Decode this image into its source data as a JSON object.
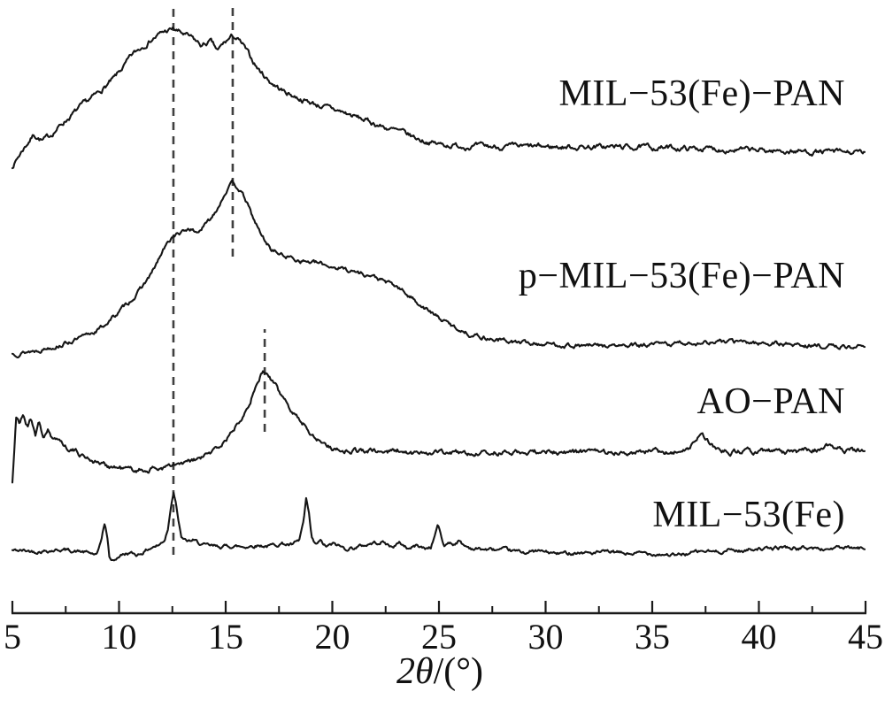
{
  "figure": {
    "background": "#ffffff",
    "curve_color": "#151515",
    "ref_line_color": "#3f3f3f",
    "axis_color": "#1a1a1a"
  },
  "chart_data": {
    "type": "line",
    "title": "",
    "xlabel": "2θ/(°)",
    "xlabel_parts": {
      "number": "2",
      "theta": "θ",
      "rest": "/(°)"
    },
    "xlim": [
      5,
      45
    ],
    "x_ticks": [
      5,
      10,
      15,
      20,
      25,
      30,
      35,
      40,
      45
    ],
    "x_tick_labels": [
      "5",
      "10",
      "15",
      "20",
      "25",
      "30",
      "35",
      "40",
      "45"
    ],
    "x_minor_tick_step": 2.5,
    "grid": false,
    "legend_position": "inline-right",
    "ref_lines": [
      {
        "two_theta": 12.55,
        "y_from": 172,
        "y_to": 789
      },
      {
        "two_theta": 15.33,
        "y_from": 509,
        "y_to": 791
      },
      {
        "two_theta": 16.83,
        "y_from": 311,
        "y_to": 427
      }
    ],
    "series": [
      {
        "name": "MIL−53(Fe)−PAN",
        "peaks_2theta": [
          12.5,
          15.3
        ],
        "noise": 4.2,
        "seed": 7,
        "points": [
          [
            5.0,
            611
          ],
          [
            5.46,
            629
          ],
          [
            6.0,
            647
          ],
          [
            6.41,
            640
          ],
          [
            6.74,
            645
          ],
          [
            7.32,
            659
          ],
          [
            8.15,
            677
          ],
          [
            8.98,
            693
          ],
          [
            9.81,
            711
          ],
          [
            10.64,
            737
          ],
          [
            11.47,
            754
          ],
          [
            12.1,
            763
          ],
          [
            12.55,
            766
          ],
          [
            12.97,
            761
          ],
          [
            13.46,
            755
          ],
          [
            13.88,
            747
          ],
          [
            14.29,
            752
          ],
          [
            14.63,
            741
          ],
          [
            14.88,
            749
          ],
          [
            15.12,
            754
          ],
          [
            15.33,
            758
          ],
          [
            15.54,
            755
          ],
          [
            15.83,
            747
          ],
          [
            16.16,
            734
          ],
          [
            16.53,
            721
          ],
          [
            17.07,
            707
          ],
          [
            17.7,
            696
          ],
          [
            18.53,
            687
          ],
          [
            19.36,
            680
          ],
          [
            20.39,
            673
          ],
          [
            21.43,
            664
          ],
          [
            22.47,
            655
          ],
          [
            23.3,
            649
          ],
          [
            24.13,
            641
          ],
          [
            24.96,
            636
          ],
          [
            26.0,
            634
          ],
          [
            27.66,
            633
          ],
          [
            29.3,
            633
          ],
          [
            31.4,
            633
          ],
          [
            33.5,
            633
          ],
          [
            35.5,
            632
          ],
          [
            37.6,
            631
          ],
          [
            39.7,
            629
          ],
          [
            41.8,
            628
          ],
          [
            43.8,
            627
          ],
          [
            45.0,
            626
          ]
        ]
      },
      {
        "name": "p−MIL−53(Fe)−PAN",
        "peaks_2theta": [
          12.5,
          15.3
        ],
        "noise": 3.6,
        "seed": 13,
        "points": [
          [
            5.0,
            399
          ],
          [
            6.08,
            403
          ],
          [
            7.32,
            410
          ],
          [
            8.36,
            418
          ],
          [
            9.19,
            429
          ],
          [
            10.02,
            447
          ],
          [
            10.85,
            467
          ],
          [
            11.56,
            491
          ],
          [
            12.1,
            517
          ],
          [
            12.55,
            533
          ],
          [
            12.97,
            536
          ],
          [
            13.3,
            541
          ],
          [
            13.63,
            536
          ],
          [
            13.96,
            543
          ],
          [
            14.29,
            551
          ],
          [
            14.67,
            567
          ],
          [
            15.0,
            583
          ],
          [
            15.33,
            592
          ],
          [
            15.62,
            586
          ],
          [
            15.95,
            572
          ],
          [
            16.29,
            552
          ],
          [
            16.7,
            532
          ],
          [
            17.12,
            518
          ],
          [
            17.61,
            511
          ],
          [
            18.32,
            506
          ],
          [
            19.36,
            501
          ],
          [
            20.6,
            495
          ],
          [
            21.85,
            487
          ],
          [
            23.0,
            475
          ],
          [
            23.92,
            459
          ],
          [
            24.83,
            442
          ],
          [
            25.66,
            430
          ],
          [
            26.5,
            421
          ],
          [
            27.45,
            416
          ],
          [
            28.7,
            412
          ],
          [
            30.15,
            410
          ],
          [
            32.2,
            408
          ],
          [
            34.3,
            408
          ],
          [
            36.37,
            411
          ],
          [
            38.45,
            413
          ],
          [
            40.5,
            411
          ],
          [
            42.6,
            408
          ],
          [
            45.0,
            407
          ]
        ]
      },
      {
        "name": "AO−PAN",
        "peaks_2theta": [
          16.8
        ],
        "noise": 4.2,
        "seed": 21,
        "points": [
          [
            5.0,
            254
          ],
          [
            5.08,
            287
          ],
          [
            5.17,
            329
          ],
          [
            5.33,
            319
          ],
          [
            5.5,
            331
          ],
          [
            5.7,
            317
          ],
          [
            5.87,
            327
          ],
          [
            6.08,
            309
          ],
          [
            6.24,
            321
          ],
          [
            6.45,
            305
          ],
          [
            6.66,
            313
          ],
          [
            6.91,
            299
          ],
          [
            7.16,
            305
          ],
          [
            7.45,
            295
          ],
          [
            7.82,
            291
          ],
          [
            8.24,
            285
          ],
          [
            8.78,
            279
          ],
          [
            9.4,
            273
          ],
          [
            10.02,
            270
          ],
          [
            10.64,
            268
          ],
          [
            11.27,
            268
          ],
          [
            11.89,
            270
          ],
          [
            12.5,
            272
          ],
          [
            13.13,
            275
          ],
          [
            13.75,
            280
          ],
          [
            14.29,
            287
          ],
          [
            14.79,
            296
          ],
          [
            15.29,
            310
          ],
          [
            15.7,
            327
          ],
          [
            16.08,
            344
          ],
          [
            16.37,
            359
          ],
          [
            16.58,
            371
          ],
          [
            16.74,
            380
          ],
          [
            16.91,
            376
          ],
          [
            17.07,
            372
          ],
          [
            17.32,
            363
          ],
          [
            17.61,
            351
          ],
          [
            17.95,
            341
          ],
          [
            18.28,
            331
          ],
          [
            18.61,
            321
          ],
          [
            18.94,
            312
          ],
          [
            19.27,
            304
          ],
          [
            19.6,
            298
          ],
          [
            19.98,
            293
          ],
          [
            20.6,
            290
          ],
          [
            21.43,
            290
          ],
          [
            22.26,
            288
          ],
          [
            23.09,
            290
          ],
          [
            23.71,
            285
          ],
          [
            24.34,
            289
          ],
          [
            25.17,
            288
          ],
          [
            26.41,
            286
          ],
          [
            27.66,
            288
          ],
          [
            29.3,
            288
          ],
          [
            30.97,
            288
          ],
          [
            32.63,
            288
          ],
          [
            34.3,
            289
          ],
          [
            35.54,
            288
          ],
          [
            36.37,
            289
          ],
          [
            36.78,
            292
          ],
          [
            37.03,
            302
          ],
          [
            37.24,
            308
          ],
          [
            37.45,
            304
          ],
          [
            37.74,
            296
          ],
          [
            38.11,
            291
          ],
          [
            38.86,
            288
          ],
          [
            40.1,
            289
          ],
          [
            41.35,
            288
          ],
          [
            42.6,
            290
          ],
          [
            43.34,
            295
          ],
          [
            43.84,
            292
          ],
          [
            44.46,
            289
          ],
          [
            45.0,
            290
          ]
        ]
      },
      {
        "name": "MIL−53(Fe)",
        "peaks_2theta": [
          9.3,
          12.6,
          18.8,
          25.0
        ],
        "noise": 3.0,
        "seed": 42,
        "points": [
          [
            5.0,
            177
          ],
          [
            6.08,
            176
          ],
          [
            7.32,
            178
          ],
          [
            8.36,
            175
          ],
          [
            8.78,
            173
          ],
          [
            8.98,
            171
          ],
          [
            9.15,
            187
          ],
          [
            9.31,
            207
          ],
          [
            9.44,
            194
          ],
          [
            9.56,
            167
          ],
          [
            9.73,
            165
          ],
          [
            10.02,
            171
          ],
          [
            10.44,
            174
          ],
          [
            10.85,
            172
          ],
          [
            11.27,
            177
          ],
          [
            11.56,
            181
          ],
          [
            11.89,
            183
          ],
          [
            12.14,
            189
          ],
          [
            12.3,
            203
          ],
          [
            12.43,
            227
          ],
          [
            12.55,
            245
          ],
          [
            12.68,
            231
          ],
          [
            12.8,
            207
          ],
          [
            12.93,
            191
          ],
          [
            13.13,
            187
          ],
          [
            13.46,
            188
          ],
          [
            13.75,
            185
          ],
          [
            14.08,
            182
          ],
          [
            14.58,
            181
          ],
          [
            15.21,
            182
          ],
          [
            15.83,
            181
          ],
          [
            16.45,
            183
          ],
          [
            17.07,
            182
          ],
          [
            17.61,
            185
          ],
          [
            18.1,
            183
          ],
          [
            18.44,
            187
          ],
          [
            18.65,
            209
          ],
          [
            18.77,
            233
          ],
          [
            18.9,
            219
          ],
          [
            19.02,
            191
          ],
          [
            19.19,
            183
          ],
          [
            19.44,
            187
          ],
          [
            19.69,
            181
          ],
          [
            20.1,
            184
          ],
          [
            20.6,
            179
          ],
          [
            21.22,
            181
          ],
          [
            21.85,
            185
          ],
          [
            22.34,
            187
          ],
          [
            22.76,
            181
          ],
          [
            23.17,
            185
          ],
          [
            23.59,
            179
          ],
          [
            24.0,
            183
          ],
          [
            24.34,
            179
          ],
          [
            24.63,
            181
          ],
          [
            24.8,
            194
          ],
          [
            24.96,
            207
          ],
          [
            25.09,
            193
          ],
          [
            25.25,
            181
          ],
          [
            25.46,
            187
          ],
          [
            25.66,
            184
          ],
          [
            25.91,
            188
          ],
          [
            26.2,
            182
          ],
          [
            26.62,
            179
          ],
          [
            27.24,
            178
          ],
          [
            28.07,
            177
          ],
          [
            28.9,
            175
          ],
          [
            29.73,
            176
          ],
          [
            30.56,
            173
          ],
          [
            31.39,
            175
          ],
          [
            32.22,
            174
          ],
          [
            33.05,
            175
          ],
          [
            33.88,
            173
          ],
          [
            34.71,
            174
          ],
          [
            35.54,
            173
          ],
          [
            36.16,
            171
          ],
          [
            36.78,
            174
          ],
          [
            37.41,
            176
          ],
          [
            38.03,
            175
          ],
          [
            38.65,
            178
          ],
          [
            39.27,
            176
          ],
          [
            39.9,
            180
          ],
          [
            40.52,
            178
          ],
          [
            41.14,
            181
          ],
          [
            41.77,
            179
          ],
          [
            42.39,
            180
          ],
          [
            43.01,
            178
          ],
          [
            43.63,
            180
          ],
          [
            44.25,
            179
          ],
          [
            45.0,
            179
          ]
        ]
      }
    ]
  }
}
